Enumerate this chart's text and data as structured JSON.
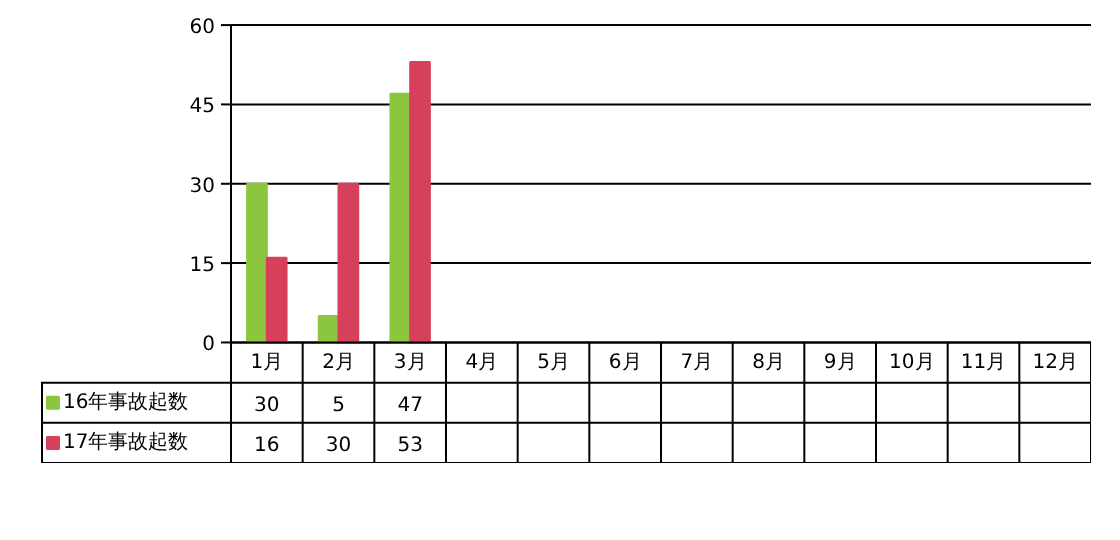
{
  "chart_data": {
    "type": "bar",
    "categories": [
      "1月",
      "2月",
      "3月",
      "4月",
      "5月",
      "6月",
      "7月",
      "8月",
      "9月",
      "10月",
      "11月",
      "12月"
    ],
    "series": [
      {
        "name": "16年事故起数",
        "color": "#8cc63e",
        "values": [
          30,
          5,
          47,
          null,
          null,
          null,
          null,
          null,
          null,
          null,
          null,
          null
        ]
      },
      {
        "name": "17年事故起数",
        "color": "#d6405a",
        "values": [
          16,
          30,
          53,
          null,
          null,
          null,
          null,
          null,
          null,
          null,
          null,
          null
        ]
      }
    ],
    "ylim": [
      0,
      60
    ],
    "yticks": [
      0,
      15,
      30,
      45,
      60
    ],
    "grid": "y",
    "data_labels": true,
    "legend": "bottom"
  }
}
